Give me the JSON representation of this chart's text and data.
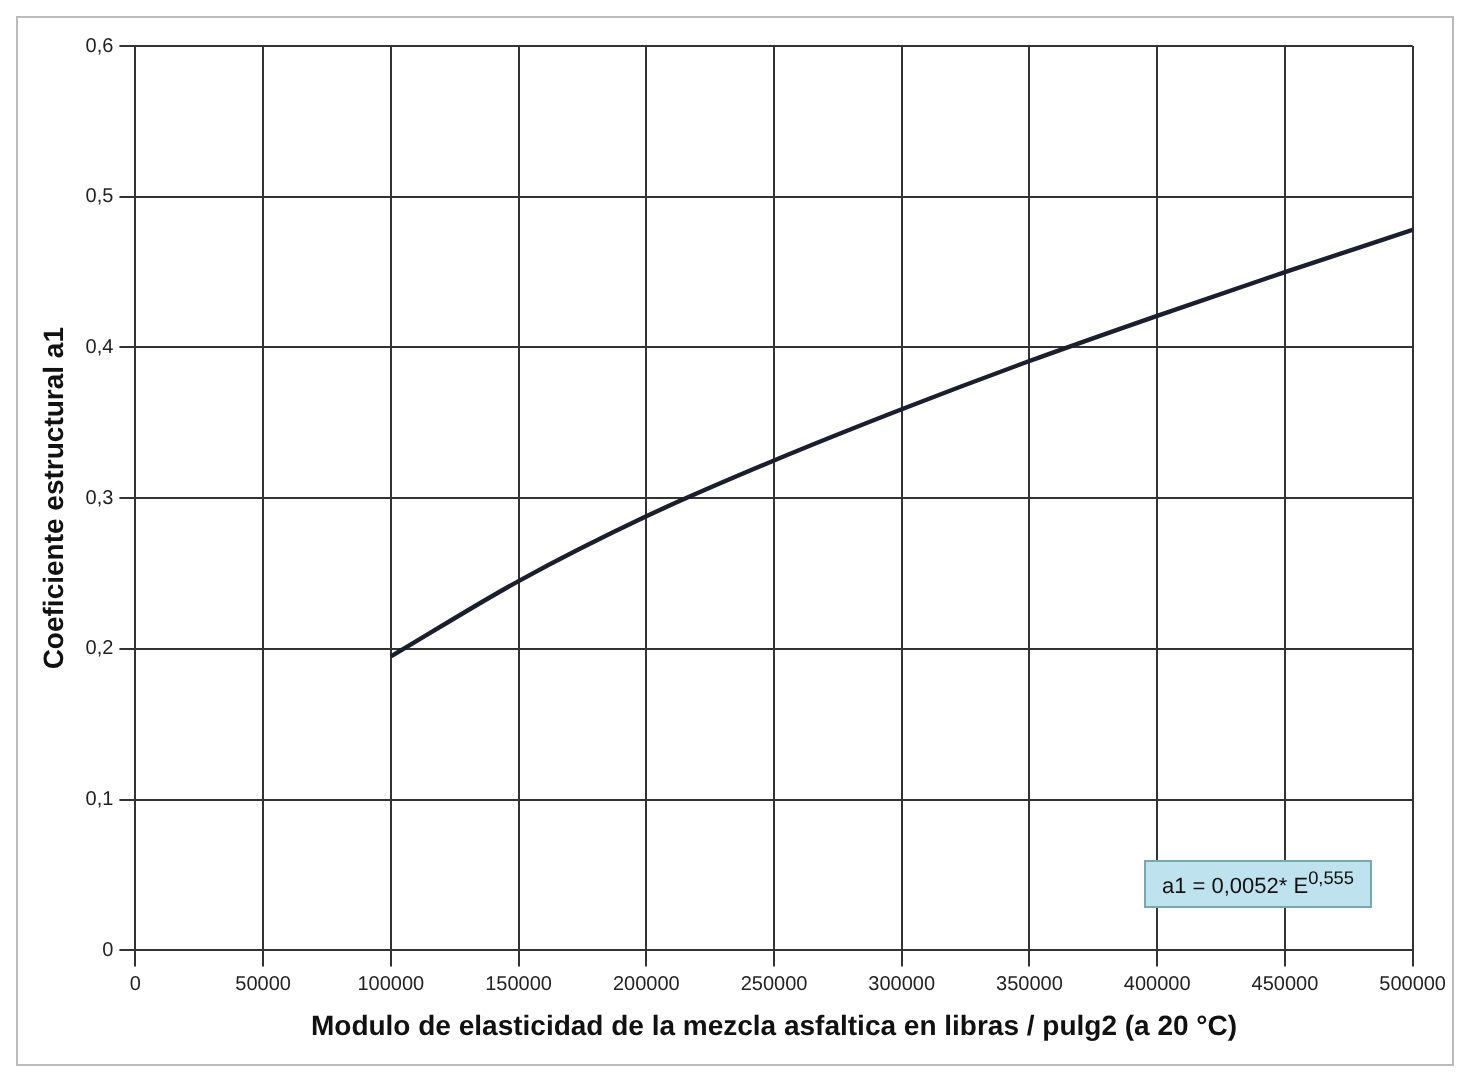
{
  "chart_data": {
    "type": "line",
    "xlabel": "Modulo de elasticidad de la mezcla asfaltica en libras / pulg2 (a 20 °C)",
    "ylabel": "Coeficiente estructural a1",
    "x": [
      100000,
      150000,
      200000,
      250000,
      300000,
      350000,
      400000,
      450000,
      500000
    ],
    "series": [
      {
        "color": "#1a1f2e",
        "values": [
          0.195,
          0.245,
          0.288,
          0.325,
          0.359,
          0.391,
          0.421,
          0.45,
          0.478
        ]
      }
    ],
    "xlim": [
      0,
      500000
    ],
    "xticks": [
      0,
      50000,
      100000,
      150000,
      200000,
      250000,
      300000,
      350000,
      400000,
      450000,
      500000
    ],
    "ylim": [
      0,
      0.6
    ],
    "yticks": [
      {
        "value": 0,
        "label": "0"
      },
      {
        "value": 0.1,
        "label": "0,1"
      },
      {
        "value": 0.2,
        "label": "0,2"
      },
      {
        "value": 0.3,
        "label": "0,3"
      },
      {
        "value": 0.4,
        "label": "0,4"
      },
      {
        "value": 0.5,
        "label": "0,5"
      },
      {
        "value": 0.6,
        "label": "0,6"
      }
    ],
    "grid": true,
    "legend": false,
    "marker": "none",
    "line_style": "solid",
    "annotations": [
      "a1 = 0,0052* E$^{0,555}$"
    ]
  }
}
